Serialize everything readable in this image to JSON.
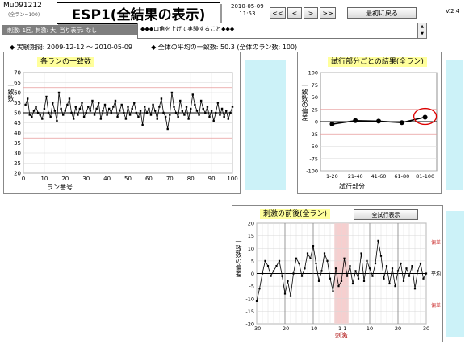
{
  "header": {
    "id_code": "Mu091212",
    "id_sub": "(全ラン=100)",
    "title": "ESP1(全結果の表示)",
    "date": "2010-05-09",
    "time": "11:53",
    "nav_buttons": [
      "<<",
      "<",
      ">",
      ">>"
    ],
    "back_button": "最初に戻る",
    "version": "V.2.4"
  },
  "conditions": "刺激: 1回, 刺激: 大, 当り表示: なし",
  "note": "◆◆◆口角を上げて実験すること◆◆◆",
  "period": "◆ 実験期間: 2009-12-12 ～ 2010-05-09",
  "average": "◆ 全体の平均の一致数: 50.3  (全体のラン数: 100)",
  "colors": {
    "accent_yellow": "#ffff9c",
    "side_panel": "#ccf2f8",
    "stim_band": "#f6cfcf",
    "highlight_circle": "#dd0000"
  },
  "chart_data": [
    {
      "type": "line",
      "title": "各ランの一致数",
      "xlabel": "ラン番号",
      "ylabel": "一致数",
      "xlim": [
        0,
        100
      ],
      "ylim": [
        20,
        70
      ],
      "x_ticks": [
        "0",
        "10",
        "20",
        "30",
        "40",
        "50",
        "60",
        "70",
        "80",
        "90",
        "100"
      ],
      "y_ticks": [
        "20",
        "25",
        "30",
        "35",
        "40",
        "45",
        "50",
        "55",
        "60",
        "65",
        "70"
      ],
      "grid": true,
      "reference_lines": [
        50,
        37.5,
        62.5
      ],
      "series": [
        {
          "values": [
            54,
            57,
            49,
            48,
            51,
            53,
            50,
            49,
            47,
            52,
            58,
            50,
            48,
            55,
            51,
            46,
            60,
            52,
            49,
            51,
            54,
            57,
            50,
            47,
            53,
            49,
            52,
            55,
            48,
            50,
            53,
            51,
            56,
            49,
            52,
            55,
            47,
            51,
            54,
            49,
            52,
            50,
            53,
            56,
            48,
            51,
            54,
            50,
            47,
            53,
            49,
            52,
            55,
            50,
            48,
            51,
            44,
            53,
            50,
            52,
            49,
            54,
            51,
            47,
            53,
            57,
            50,
            48,
            42,
            49,
            60,
            53,
            50,
            48,
            56,
            51,
            49,
            53,
            47,
            52,
            59,
            54,
            51,
            49,
            56,
            52,
            50,
            53,
            48,
            51,
            46,
            50,
            55,
            49,
            52,
            48,
            51,
            47,
            50,
            53
          ]
        }
      ]
    },
    {
      "type": "line",
      "title": "試行部分ごとの結果(全ラン)",
      "xlabel": "試行部分",
      "ylabel": "一致数の偏差",
      "categories": [
        "1-20",
        "21-40",
        "41-60",
        "61-80",
        "81-100"
      ],
      "y_ticks": [
        "100",
        "75",
        "50",
        "25",
        "0",
        "-25",
        "-50",
        "-75",
        "-100"
      ],
      "ylim": [
        -100,
        100
      ],
      "grid": true,
      "reference_lines": [
        25,
        -25
      ],
      "series": [
        {
          "values": [
            -5,
            2,
            1,
            -2,
            9
          ]
        }
      ],
      "highlight": "81-100"
    },
    {
      "type": "line",
      "title": "刺激の前後(全ラン)",
      "button": "全試行表示",
      "xlabel": "刺激",
      "ylabel": "一致数の偏差",
      "xlim": [
        -30,
        30
      ],
      "ylim": [
        -20,
        20
      ],
      "x_ticks": [
        "-30",
        "-20",
        "-10",
        "-1 1",
        "10",
        "20",
        "30"
      ],
      "y_ticks": [
        "20",
        "15",
        "10",
        "5",
        "0",
        "-5",
        "-10",
        "-15",
        "-20"
      ],
      "grid": true,
      "stimulus_band": [
        -1,
        1
      ],
      "right_labels": {
        "top": "偏差",
        "middle": "平均",
        "bottom": "偏差"
      },
      "reference_lines": [
        12.5,
        -12.5
      ],
      "series": [
        {
          "x": [
            -30,
            -29,
            -28,
            -27,
            -26,
            -25,
            -24,
            -23,
            -22,
            -21,
            -20,
            -19,
            -18,
            -17,
            -16,
            -15,
            -14,
            -13,
            -12,
            -11,
            -10,
            -9,
            -8,
            -7,
            -6,
            -5,
            -4,
            -3,
            -2,
            -1,
            0,
            1,
            2,
            3,
            4,
            5,
            6,
            7,
            8,
            9,
            10,
            11,
            12,
            13,
            14,
            15,
            16,
            17,
            18,
            19,
            20,
            21,
            22,
            23,
            24,
            25,
            26,
            27,
            28,
            29,
            30
          ],
          "y": [
            -11,
            -6,
            0,
            5,
            3,
            -1,
            1,
            3,
            5,
            -1,
            -8,
            -3,
            -9,
            0,
            6,
            4,
            -1,
            2,
            8,
            6,
            11,
            4,
            -3,
            1,
            8,
            5,
            -2,
            -7,
            2,
            -5,
            -3,
            6,
            -1,
            3,
            -4,
            1,
            -2,
            8,
            -3,
            5,
            2,
            -1,
            4,
            13,
            7,
            -2,
            3,
            -4,
            2,
            -5,
            1,
            4,
            -3,
            2,
            -1,
            3,
            -6,
            1,
            4,
            -2,
            0
          ]
        }
      ]
    }
  ]
}
